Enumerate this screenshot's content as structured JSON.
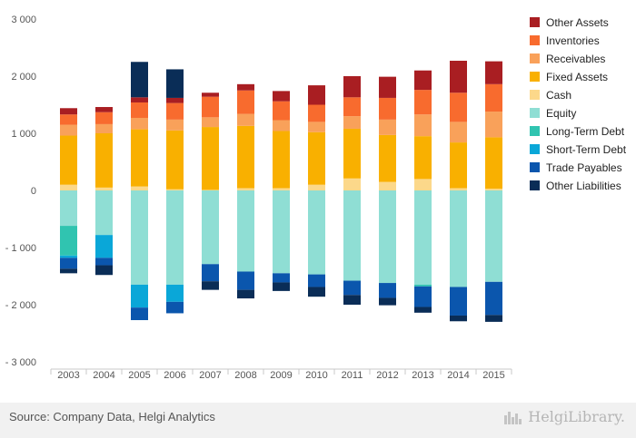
{
  "footer": {
    "source": "Source: Company Data, Helgi Analytics",
    "brand": "HelgiLibrary."
  },
  "chart_data": {
    "type": "bar",
    "stacked": true,
    "categories": [
      "2003",
      "2004",
      "2005",
      "2006",
      "2007",
      "2008",
      "2009",
      "2010",
      "2011",
      "2012",
      "2013",
      "2014",
      "2015"
    ],
    "y_ticks": [
      -3000,
      -2000,
      -1000,
      0,
      1000,
      2000,
      3000
    ],
    "y_tick_labels": [
      "- 3 000",
      "- 2 000",
      "- 1 000",
      "0",
      "1 000",
      "2 000",
      "3 000"
    ],
    "ylim": [
      -3000,
      3000
    ],
    "grid": false,
    "legend_position": "right",
    "positive_series": [
      {
        "name": "Cash",
        "color": "#fcd88a",
        "values": [
          100,
          50,
          70,
          20,
          10,
          40,
          40,
          100,
          210,
          150,
          200,
          40,
          30
        ]
      },
      {
        "name": "Fixed Assets",
        "color": "#f9b000",
        "values": [
          860,
          950,
          1000,
          1030,
          1100,
          1090,
          1000,
          920,
          870,
          820,
          750,
          800,
          900
        ]
      },
      {
        "name": "Receivables",
        "color": "#f9a15a",
        "values": [
          190,
          160,
          200,
          190,
          170,
          210,
          190,
          180,
          220,
          270,
          380,
          360,
          450
        ]
      },
      {
        "name": "Inventories",
        "color": "#f86b2e",
        "values": [
          180,
          210,
          270,
          290,
          360,
          410,
          330,
          300,
          330,
          380,
          430,
          510,
          480
        ]
      },
      {
        "name": "Other Assets",
        "color": "#a91e22",
        "values": [
          110,
          90,
          90,
          90,
          70,
          110,
          180,
          340,
          370,
          370,
          340,
          560,
          400
        ]
      },
      {
        "name": "Other Liabilities",
        "color": "#0a2d57",
        "values": [
          0,
          0,
          620,
          500,
          0,
          0,
          0,
          0,
          0,
          0,
          0,
          0,
          0
        ]
      }
    ],
    "negative_series": [
      {
        "name": "Equity",
        "color": "#8fded4",
        "values": [
          -620,
          -780,
          -1650,
          -1650,
          -1290,
          -1420,
          -1450,
          -1470,
          -1580,
          -1620,
          -1650,
          -1690,
          -1600
        ]
      },
      {
        "name": "Long-Term Debt",
        "color": "#30c4b0",
        "values": [
          -520,
          0,
          0,
          0,
          0,
          0,
          0,
          0,
          0,
          0,
          -30,
          0,
          0
        ]
      },
      {
        "name": "Short-Term Debt",
        "color": "#0aa7d8",
        "values": [
          -40,
          -400,
          -400,
          -300,
          0,
          0,
          0,
          0,
          0,
          0,
          0,
          0,
          0
        ]
      },
      {
        "name": "Trade Payables",
        "color": "#0b56ad",
        "values": [
          -190,
          -130,
          -220,
          -200,
          -300,
          -320,
          -160,
          -220,
          -250,
          -260,
          -360,
          -500,
          -580
        ]
      },
      {
        "name": "Other Liabilities",
        "color": "#0a2d57",
        "values": [
          -80,
          -170,
          0,
          0,
          -150,
          -150,
          -150,
          -170,
          -170,
          -130,
          -100,
          -100,
          -120
        ]
      }
    ],
    "legend": [
      {
        "name": "Other Assets",
        "color": "#a91e22"
      },
      {
        "name": "Inventories",
        "color": "#f86b2e"
      },
      {
        "name": "Receivables",
        "color": "#f9a15a"
      },
      {
        "name": "Fixed Assets",
        "color": "#f9b000"
      },
      {
        "name": "Cash",
        "color": "#fcd88a"
      },
      {
        "name": "Equity",
        "color": "#8fded4"
      },
      {
        "name": "Long-Term Debt",
        "color": "#30c4b0"
      },
      {
        "name": "Short-Term Debt",
        "color": "#0aa7d8"
      },
      {
        "name": "Trade Payables",
        "color": "#0b56ad"
      },
      {
        "name": "Other Liabilities",
        "color": "#0a2d57"
      }
    ]
  }
}
